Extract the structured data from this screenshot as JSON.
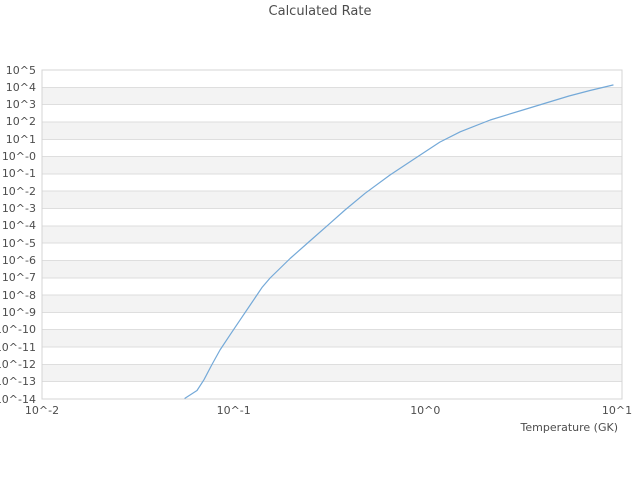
{
  "title": "Calculated Rate",
  "x_axis": {
    "label": "Temperature (GK)",
    "tick_labels": [
      "10^-2",
      "10^-1",
      "10^0",
      "10^1"
    ],
    "log_values": [
      -2,
      -1,
      0,
      1
    ]
  },
  "y_axis": {
    "label": "",
    "tick_labels": [
      "10^5",
      "10^4",
      "10^3",
      "10^2",
      "10^1",
      "10^-0",
      "10^-1",
      "10^-2",
      "10^-3",
      "10^-4",
      "10^-5",
      "10^-6",
      "10^-7",
      "10^-8",
      "10^-9",
      "10^-10",
      "10^-11",
      "10^-12",
      "10^-13",
      "10^-14"
    ],
    "log_values": [
      5,
      4,
      3,
      2,
      1,
      0,
      -1,
      -2,
      -3,
      -4,
      -5,
      -6,
      -7,
      -8,
      -9,
      -10,
      -11,
      -12,
      -13,
      -14
    ]
  },
  "colors": {
    "line": "#74a9d8",
    "gridline": "#dedede",
    "border": "#d4d4d4",
    "band": "#f3f3f3",
    "text": "#4d4d4d",
    "background": "#ffffff"
  },
  "chart_data": {
    "type": "line",
    "title": "Calculated Rate",
    "xlabel": "Temperature (GK)",
    "ylabel": "",
    "x_scale": "log",
    "y_scale": "log",
    "xlim": [
      0.01,
      10.6
    ],
    "ylim": [
      1e-14,
      100000.0
    ],
    "grid": "horizontal-decade-lines-with-alternating-bands",
    "legend": "none",
    "series": [
      {
        "name": "Calculated Rate",
        "x": [
          0.0557,
          0.0644,
          0.07,
          0.0768,
          0.0849,
          0.0957,
          0.108,
          0.122,
          0.141,
          0.155,
          0.197,
          0.25,
          0.318,
          0.381,
          0.485,
          0.654,
          0.884,
          1.19,
          1.52,
          2.18,
          3.23,
          5.62,
          7.23,
          9.53
        ],
        "y": [
          1.1e-14,
          3.1e-14,
          1.3e-13,
          9.2e-13,
          6.8e-12,
          5e-11,
          3.7e-10,
          2.7e-09,
          2.9e-08,
          9.7e-08,
          1.3e-06,
          1.33e-05,
          0.00014,
          0.00082,
          0.0076,
          0.086,
          0.79,
          6.9,
          27,
          129,
          490,
          3160,
          6560,
          13600
        ]
      }
    ]
  }
}
